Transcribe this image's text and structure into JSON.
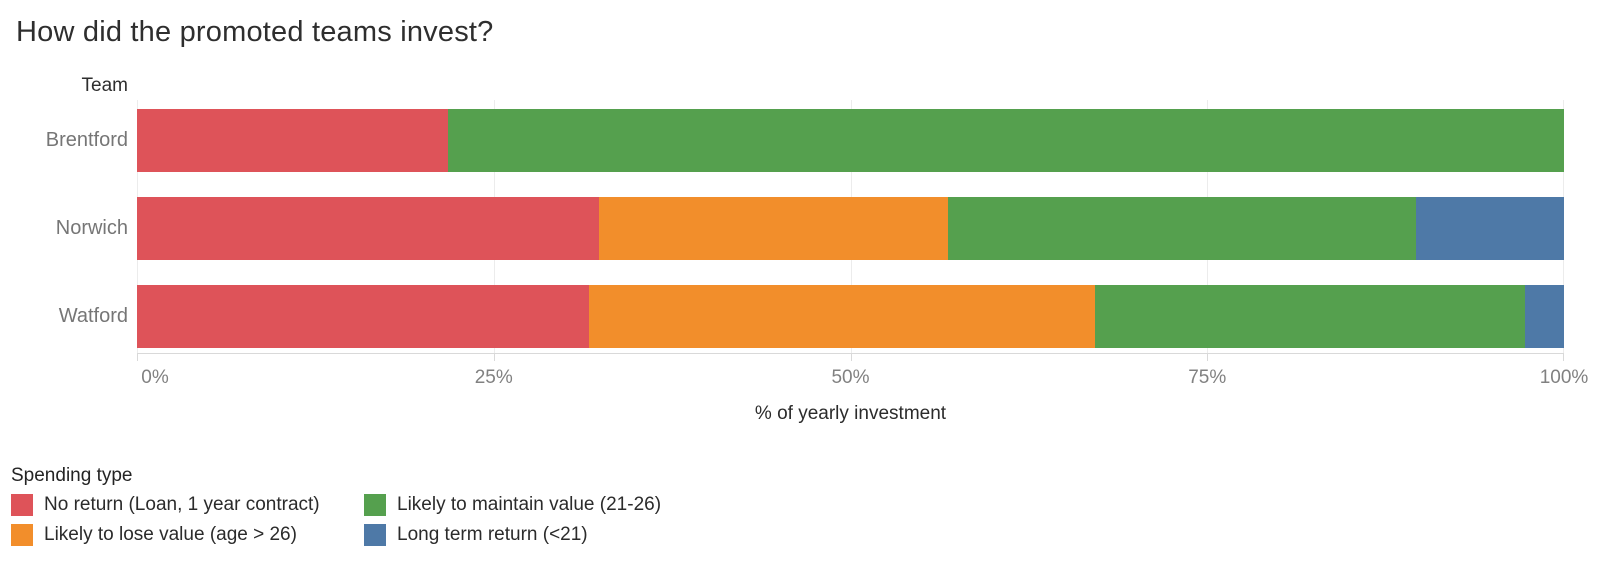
{
  "title": "How did the promoted teams invest?",
  "axis": {
    "y_title": "Team",
    "x_title": "% of yearly investment"
  },
  "legend": {
    "title": "Spending type",
    "items": [
      {
        "label": "No return (Loan, 1 year contract)",
        "color": "#DE5359"
      },
      {
        "label": "Likely to maintain value (21-26)",
        "color": "#55A04E"
      },
      {
        "label": "Likely to lose value (age > 26)",
        "color": "#F28E2B"
      },
      {
        "label": "Long term return (<21)",
        "color": "#4E79A7"
      }
    ]
  },
  "chart_data": {
    "type": "bar",
    "orientation": "horizontal",
    "stacked": true,
    "title": "How did the promoted teams invest?",
    "xlabel": "% of yearly investment",
    "ylabel": "Team",
    "xlim": [
      0,
      100
    ],
    "x_tick_values": [
      0,
      25,
      50,
      75,
      100
    ],
    "x_tick_labels": [
      "0%",
      "25%",
      "50%",
      "75%",
      "100%"
    ],
    "grid": "vertical",
    "legend_title": "Spending type",
    "legend_position": "bottom-left",
    "categories": [
      "Brentford",
      "Norwich",
      "Watford"
    ],
    "series": [
      {
        "name": "No return (Loan, 1 year contract)",
        "color": "#DE5359",
        "values": [
          21.8,
          32.4,
          31.7
        ]
      },
      {
        "name": "Likely to lose value (age > 26)",
        "color": "#F28E2B",
        "values": [
          0,
          24.4,
          35.4
        ]
      },
      {
        "name": "Likely to maintain value (21-26)",
        "color": "#55A04E",
        "values": [
          78.2,
          32.8,
          30.2
        ]
      },
      {
        "name": "Long term return (<21)",
        "color": "#4E79A7",
        "values": [
          0,
          10.4,
          2.7
        ]
      }
    ]
  }
}
